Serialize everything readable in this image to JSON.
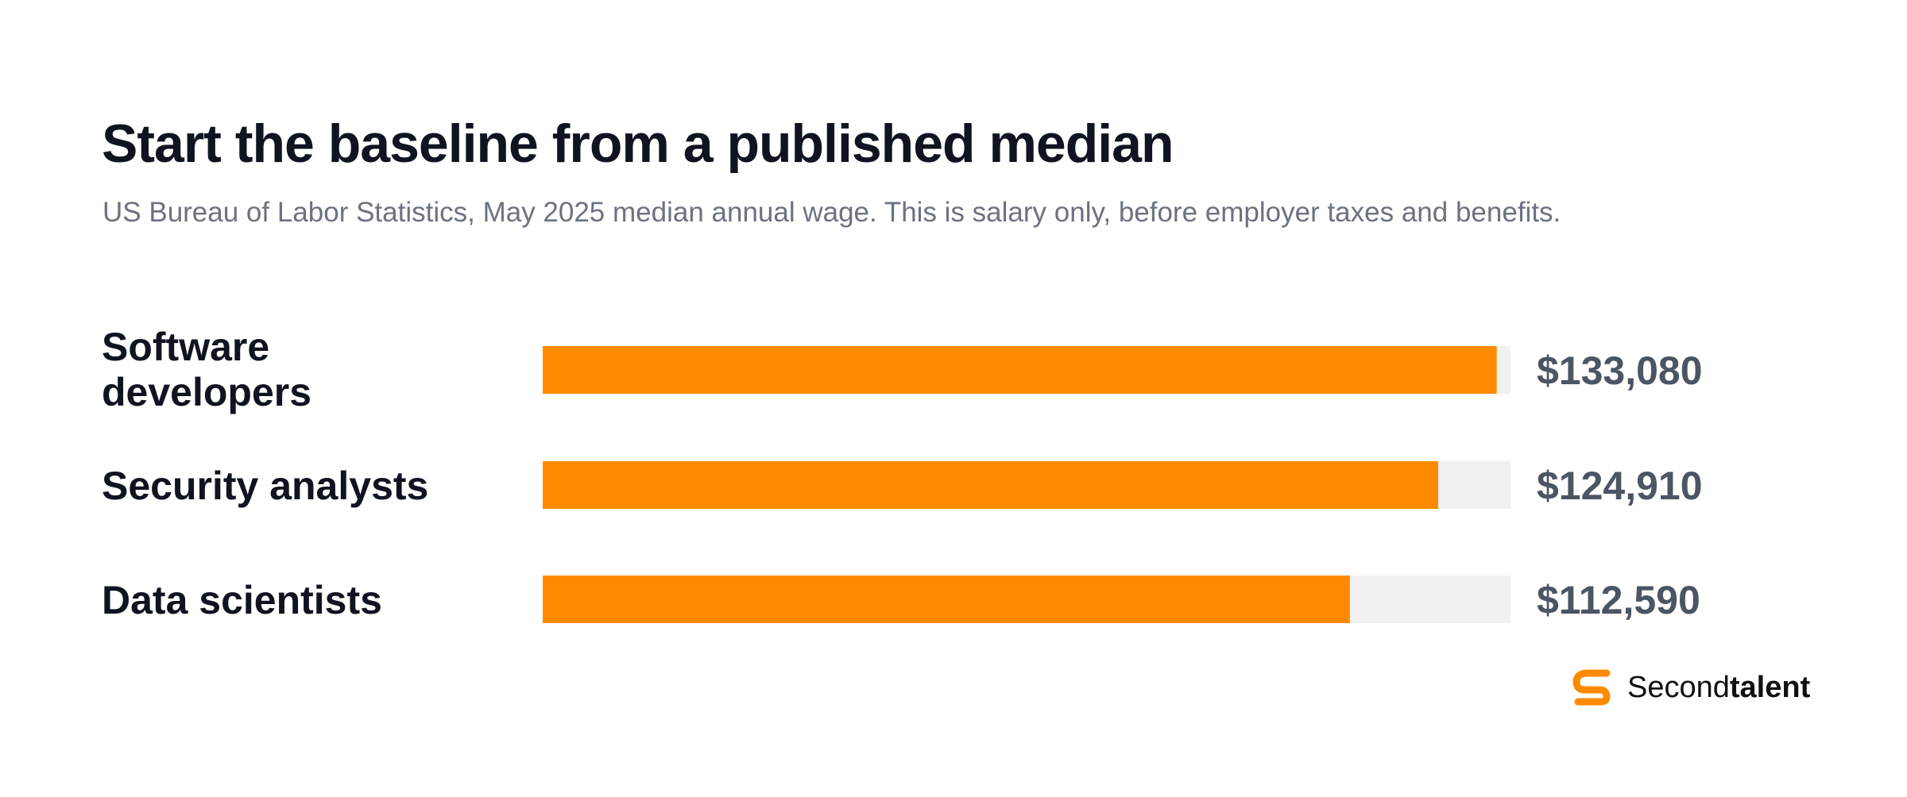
{
  "header": {
    "title": "Start the baseline from a published median",
    "subtitle": "US Bureau of Labor Statistics, May 2025 median annual wage. This is salary only, before employer taxes and benefits."
  },
  "chart_data": {
    "type": "bar",
    "orientation": "horizontal",
    "categories": [
      "Software developers",
      "Security analysts",
      "Data scientists"
    ],
    "values": [
      133080,
      124910,
      112590
    ],
    "value_labels": [
      "$133,080",
      "$124,910",
      "$112,590"
    ],
    "xlim": [
      0,
      135000
    ],
    "grid": false,
    "legend": "none",
    "colors": {
      "bar": "#FF8A00",
      "track": "#F0F1F0"
    }
  },
  "brand": {
    "name_regular": "Second",
    "name_bold": "talent",
    "icon": "secondtalent-logo-icon",
    "color": "#FF8A00"
  }
}
